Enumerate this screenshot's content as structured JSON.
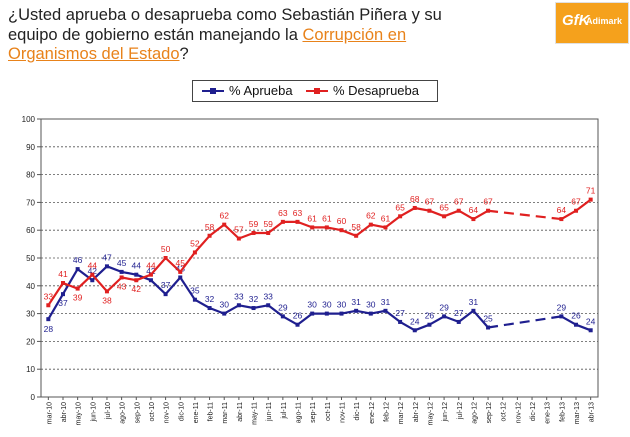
{
  "header": {
    "title_part1": "¿Usted aprueba o desaprueba como Sebastián Piñera y su equipo de gobierno están manejando la ",
    "title_highlight": "Corrupción en Organismos del Estado",
    "title_part2": "?",
    "logo_mark": "GfK",
    "logo_text": "Adimark"
  },
  "colors": {
    "aprueba": "#1f1f8f",
    "desaprueba": "#e02020",
    "highlight": "#e8821a"
  },
  "chart_data": {
    "type": "line",
    "title": "",
    "xlabel": "",
    "ylabel": "",
    "ylim": [
      0,
      100
    ],
    "yticks": [
      0,
      10,
      20,
      30,
      40,
      50,
      60,
      70,
      80,
      90,
      100
    ],
    "grid": true,
    "legend_position": "top-center",
    "categories": [
      "mar-10",
      "abr-10",
      "may-10",
      "jun-10",
      "jul-10",
      "ago-10",
      "sep-10",
      "oct-10",
      "nov-10",
      "dic-10",
      "ene-11",
      "feb-11",
      "mar-11",
      "abr-11",
      "may-11",
      "jun-11",
      "jul-11",
      "ago-11",
      "sep-11",
      "oct-11",
      "nov-11",
      "dic-11",
      "ene-12",
      "feb-12",
      "mar-12",
      "abr-12",
      "may-12",
      "jun-12",
      "jul-12",
      "ago-12",
      "sep-12",
      "oct-12",
      "nov-12",
      "dic-12",
      "ene-13",
      "feb-13",
      "mar-13",
      "abr-13"
    ],
    "series": [
      {
        "name": "% Aprueba",
        "values": [
          28,
          37,
          46,
          42,
          47,
          45,
          44,
          42,
          37,
          43,
          35,
          32,
          30,
          33,
          32,
          33,
          29,
          26,
          30,
          30,
          30,
          31,
          30,
          31,
          27,
          24,
          26,
          29,
          27,
          31,
          25,
          null,
          null,
          null,
          null,
          29,
          26,
          24
        ],
        "labels": [
          28,
          37,
          46,
          42,
          47,
          45,
          44,
          42,
          37,
          43,
          35,
          32,
          30,
          33,
          32,
          33,
          29,
          26,
          30,
          30,
          30,
          31,
          30,
          31,
          27,
          24,
          26,
          29,
          27,
          31,
          25,
          null,
          null,
          null,
          null,
          29,
          26,
          24
        ]
      },
      {
        "name": "% Desaprueba",
        "values": [
          33,
          41,
          39,
          44,
          38,
          43,
          42,
          44,
          50,
          45,
          52,
          58,
          62,
          57,
          59,
          59,
          63,
          63,
          61,
          61,
          60,
          58,
          62,
          61,
          65,
          68,
          67,
          65,
          67,
          64,
          67,
          null,
          null,
          null,
          null,
          64,
          67,
          71
        ],
        "labels": [
          33,
          41,
          39,
          44,
          38,
          43,
          42,
          44,
          50,
          45,
          52,
          58,
          62,
          57,
          59,
          59,
          63,
          63,
          61,
          61,
          60,
          58,
          62,
          61,
          65,
          68,
          67,
          65,
          67,
          64,
          67,
          null,
          null,
          null,
          null,
          64,
          67,
          71
        ]
      }
    ]
  }
}
